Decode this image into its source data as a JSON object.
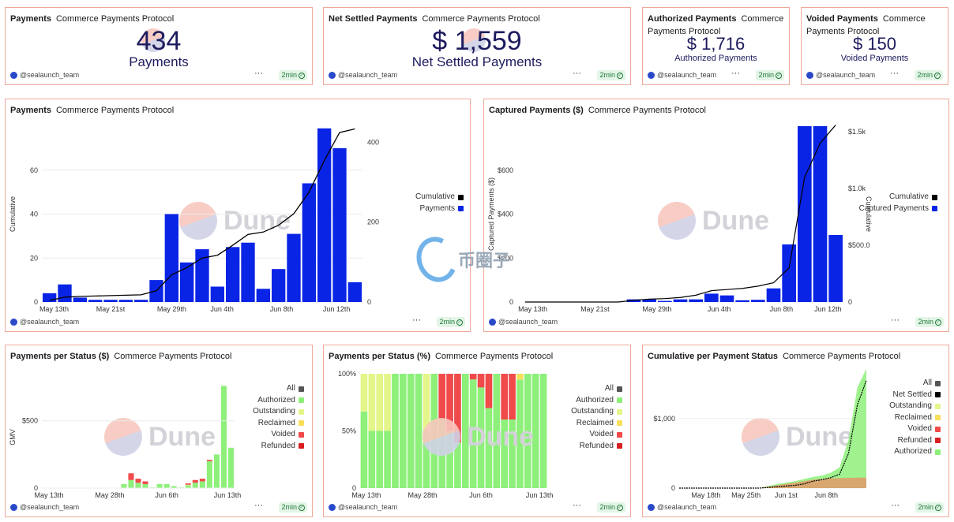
{
  "common": {
    "subtitle": "Commerce Payments Protocol",
    "user": "@sealaunch_team",
    "age": "2min",
    "more": "···",
    "watermark": "Dune"
  },
  "counters": [
    {
      "title": "Payments",
      "value": "434",
      "label": "Payments"
    },
    {
      "title": "Net Settled Payments",
      "value": "$ 1,559",
      "label": "Net Settled Payments"
    },
    {
      "title": "Authorized Payments",
      "value": "$ 1,716",
      "label": "Authorized Payments"
    },
    {
      "title": "Voided Payments",
      "value": "$ 150",
      "label": "Voided Payments"
    }
  ],
  "overlay_watermark": "币圈子",
  "colors": {
    "blue": "#0a24e6",
    "green": "#8ef07a",
    "lime": "#e4f58a",
    "yellow": "#f7df5a",
    "red": "#f04a4a",
    "darkred": "#d81e1e",
    "frame": "#f0a89a"
  },
  "chart_data": [
    {
      "type": "bar",
      "title": "Payments",
      "subtitle": "Commerce Payments Protocol",
      "xlabel": "",
      "ylabel": "Cumulative",
      "x_ticks": [
        "May 13th",
        "May 21st",
        "May 29th",
        "Jun 4th",
        "Jun 8th",
        "Jun 12th"
      ],
      "y_ticks": [
        "0",
        "20",
        "40",
        "60"
      ],
      "y2_ticks": [
        "0",
        "200",
        "400"
      ],
      "ylim": [
        0,
        80
      ],
      "y2lim": [
        0,
        440
      ],
      "grid": true,
      "legend_position": "right",
      "series": [
        {
          "name": "Cumulative",
          "type": "line",
          "axis": "right",
          "color": "#000000",
          "values": [
            4,
            12,
            14,
            15,
            16,
            17,
            18,
            28,
            68,
            86,
            110,
            117,
            142,
            169,
            175,
            192,
            221,
            275,
            354,
            424,
            433
          ]
        },
        {
          "name": "Payments",
          "type": "bar",
          "axis": "left",
          "color": "#0a24e6",
          "values": [
            4,
            8,
            2,
            1,
            1,
            1,
            1,
            10,
            40,
            18,
            24,
            7,
            25,
            27,
            6,
            15,
            31,
            54,
            79,
            70,
            9
          ]
        }
      ]
    },
    {
      "type": "bar",
      "title": "Captured Payments ($)",
      "subtitle": "Commerce Payments Protocol",
      "xlabel": "",
      "ylabel": "Captured Payments ($)",
      "y2label": "Cumulative",
      "x_ticks": [
        "May 13th",
        "May 21st",
        "May 29th",
        "Jun 4th",
        "Jun 8th",
        "Jun 12th"
      ],
      "y_ticks": [
        "0",
        "$200",
        "$400",
        "$600"
      ],
      "y2_ticks": [
        "0",
        "$500.0",
        "$1.0k",
        "$1.5k"
      ],
      "ylim": [
        0,
        800
      ],
      "y2lim": [
        0,
        1550
      ],
      "grid": false,
      "legend_position": "right",
      "series": [
        {
          "name": "Cumulative",
          "type": "line",
          "axis": "right",
          "color": "#000000",
          "values": [
            0,
            0,
            0,
            0,
            0,
            0,
            0,
            15,
            25,
            30,
            40,
            60,
            100,
            110,
            120,
            140,
            170,
            300,
            1100,
            1400,
            1560
          ]
        },
        {
          "name": "Captured Payments",
          "type": "bar",
          "axis": "left",
          "color": "#0a24e6",
          "values": [
            0,
            0,
            0,
            0,
            0,
            0,
            0,
            12,
            12,
            5,
            12,
            12,
            38,
            30,
            8,
            10,
            62,
            262,
            800,
            800,
            305
          ]
        }
      ]
    },
    {
      "type": "bar",
      "stacked": true,
      "title": "Payments per Status ($)",
      "subtitle": "Commerce Payments Protocol",
      "xlabel": "",
      "ylabel": "GMV",
      "x_ticks": [
        "May 13th",
        "May 28th",
        "Jun 6th",
        "Jun 13th"
      ],
      "y_ticks": [
        "0",
        "$500"
      ],
      "ylim": [
        0,
        850
      ],
      "grid": true,
      "legend_position": "right",
      "series": [
        {
          "name": "All",
          "color": "#555555",
          "values": []
        },
        {
          "name": "Authorized",
          "color": "#8ef07a",
          "values": [
            0,
            0,
            0,
            0,
            0,
            0,
            0,
            0,
            0,
            0,
            0,
            30,
            60,
            40,
            30,
            5,
            30,
            30,
            15,
            5,
            20,
            40,
            50,
            200,
            250,
            760,
            300
          ]
        },
        {
          "name": "Outstanding",
          "color": "#e4f58a",
          "values": [
            0,
            0,
            0,
            0,
            0,
            0,
            0,
            0,
            0,
            0,
            0,
            0,
            0,
            0,
            0,
            0,
            0,
            0,
            0,
            0,
            5,
            0,
            0,
            0,
            0,
            0,
            0
          ]
        },
        {
          "name": "Reclaimed",
          "color": "#f7df5a",
          "values": []
        },
        {
          "name": "Voided",
          "color": "#f04a4a",
          "values": [
            0,
            0,
            0,
            0,
            0,
            0,
            0,
            0,
            0,
            0,
            0,
            0,
            50,
            30,
            20,
            0,
            0,
            0,
            0,
            0,
            10,
            20,
            20,
            10,
            0,
            0,
            0
          ]
        },
        {
          "name": "Refunded",
          "color": "#d81e1e",
          "values": [
            0,
            0,
            0,
            0,
            0,
            0,
            0,
            0,
            0,
            0,
            0,
            0,
            0,
            0,
            0,
            0,
            0,
            0,
            0,
            0,
            0,
            0,
            0,
            0,
            0,
            0,
            0
          ]
        }
      ]
    },
    {
      "type": "bar",
      "stacked": true,
      "percent": true,
      "title": "Payments per Status (%)",
      "subtitle": "Commerce Payments Protocol",
      "xlabel": "",
      "ylabel": "",
      "x_ticks": [
        "May 13th",
        "May 28th",
        "Jun 6th",
        "Jun 13th"
      ],
      "y_ticks": [
        "0",
        "50%",
        "100%"
      ],
      "ylim": [
        0,
        100
      ],
      "grid": false,
      "legend_position": "right",
      "series": [
        {
          "name": "All",
          "color": "#555555",
          "values": []
        },
        {
          "name": "Authorized",
          "color": "#8ef07a",
          "values": [
            67,
            50,
            50,
            50,
            100,
            100,
            100,
            100,
            50,
            100,
            60,
            50,
            40,
            100,
            95,
            88,
            70,
            100,
            60,
            60,
            95,
            100,
            100,
            100
          ]
        },
        {
          "name": "Outstanding",
          "color": "#e4f58a",
          "values": [
            33,
            50,
            50,
            50,
            0,
            0,
            0,
            0,
            50,
            0,
            0,
            0,
            0,
            0,
            0,
            0,
            0,
            0,
            0,
            0,
            0,
            0,
            0,
            0
          ]
        },
        {
          "name": "Reclaimed",
          "color": "#f7df5a",
          "values": [
            0,
            0,
            0,
            0,
            0,
            0,
            0,
            0,
            0,
            0,
            0,
            0,
            0,
            0,
            0,
            0,
            0,
            0,
            0,
            0,
            5,
            0,
            0,
            0
          ]
        },
        {
          "name": "Voided",
          "color": "#f04a4a",
          "values": [
            0,
            0,
            0,
            0,
            0,
            0,
            0,
            0,
            0,
            0,
            40,
            50,
            60,
            0,
            5,
            12,
            30,
            0,
            40,
            40,
            0,
            0,
            0,
            0
          ]
        },
        {
          "name": "Refunded",
          "color": "#d81e1e",
          "values": [
            0,
            0,
            0,
            0,
            0,
            0,
            0,
            0,
            0,
            0,
            0,
            0,
            0,
            0,
            0,
            0,
            0,
            0,
            0,
            0,
            0,
            0,
            0,
            0
          ]
        }
      ]
    },
    {
      "type": "area",
      "stacked": true,
      "title": "Cumulative per Payment Status",
      "subtitle": "Commerce Payments Protocol",
      "xlabel": "",
      "ylabel": "",
      "x_ticks": [
        "May 18th",
        "May 25th",
        "Jun 1st",
        "Jun 8th"
      ],
      "y_ticks": [
        "0",
        "$1,000"
      ],
      "ylim": [
        0,
        1600
      ],
      "grid": true,
      "legend_position": "right",
      "series": [
        {
          "name": "All",
          "color": "#555555",
          "values": []
        },
        {
          "name": "Net Settled",
          "type": "line",
          "color": "#000000",
          "values": [
            0,
            0,
            0,
            0,
            0,
            0,
            0,
            0,
            0,
            0,
            10,
            20,
            30,
            40,
            60,
            100,
            120,
            150,
            200,
            500,
            1200,
            1550
          ]
        },
        {
          "name": "Outstanding",
          "color": "#e4f58a",
          "values": []
        },
        {
          "name": "Reclaimed",
          "color": "#f7df5a",
          "values": []
        },
        {
          "name": "Voided",
          "color": "#f04a4a",
          "values": [
            0,
            0,
            0,
            0,
            0,
            0,
            0,
            0,
            0,
            0,
            20,
            40,
            60,
            80,
            100,
            120,
            130,
            140,
            145,
            148,
            150,
            150
          ]
        },
        {
          "name": "Refunded",
          "color": "#d81e1e",
          "values": []
        },
        {
          "name": "Authorized",
          "color": "#8ef07a",
          "values": [
            0,
            0,
            0,
            0,
            0,
            0,
            0,
            0,
            0,
            0,
            30,
            60,
            80,
            100,
            130,
            160,
            180,
            220,
            300,
            700,
            1450,
            1716
          ]
        }
      ]
    }
  ]
}
